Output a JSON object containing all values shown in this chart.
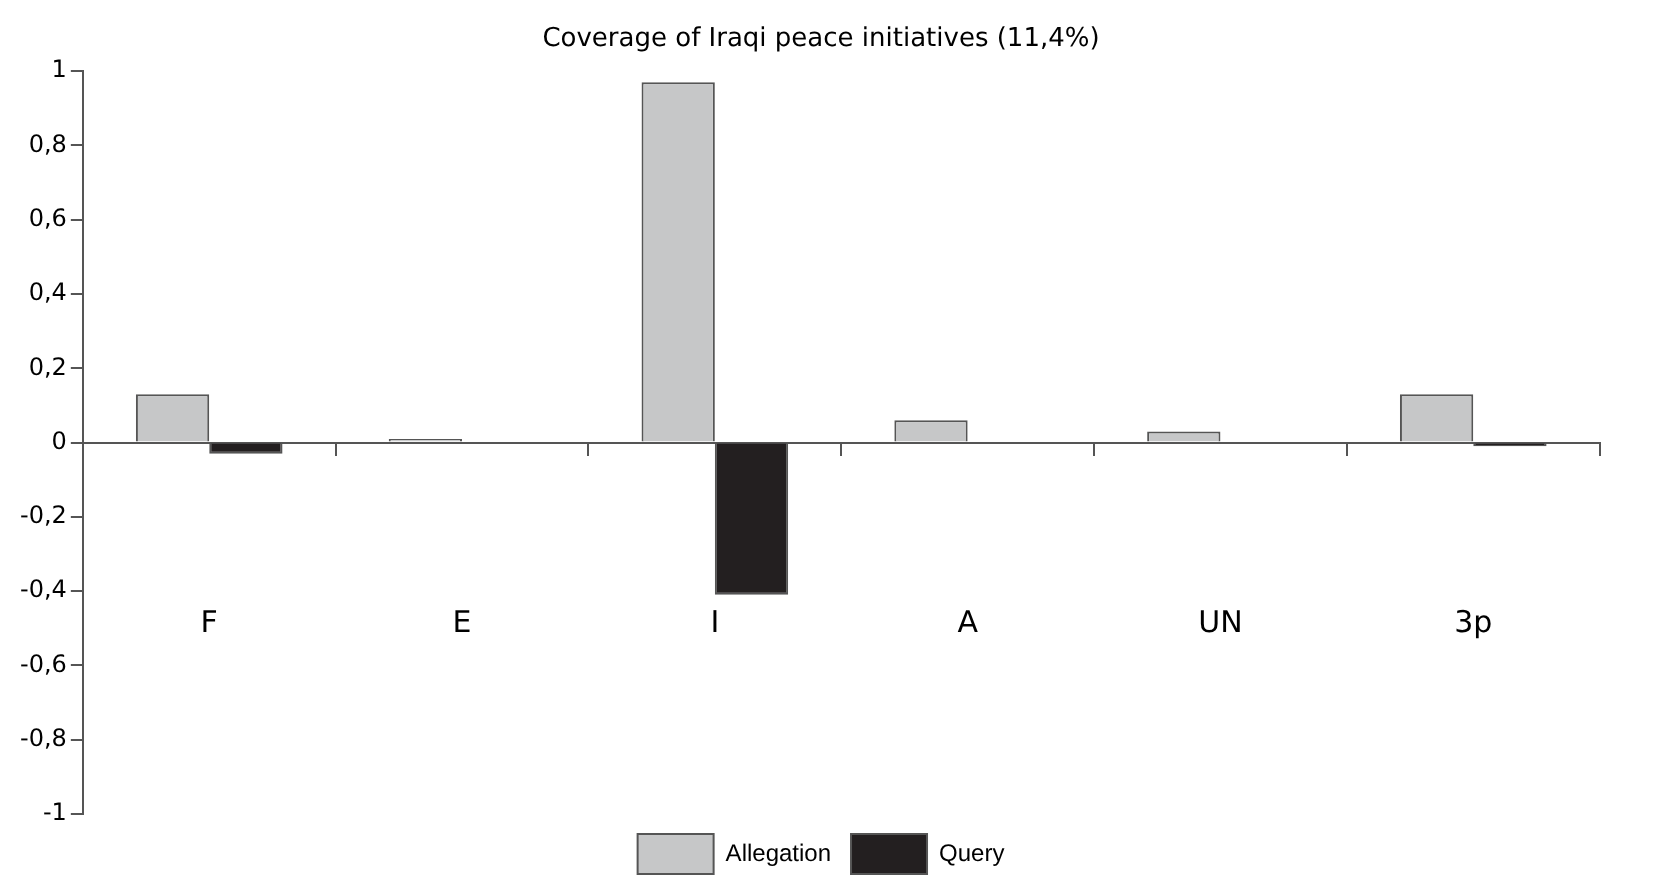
{
  "chart_data": {
    "type": "bar",
    "title": "Coverage of Iraqi peace initiatives (11,4%)",
    "categories": [
      "F",
      "E",
      "I",
      "A",
      "UN",
      "3p"
    ],
    "series": [
      {
        "name": "Allegation",
        "color": "#c6c7c8",
        "values": [
          0.13,
          0.01,
          0.97,
          0.06,
          0.03,
          0.13
        ]
      },
      {
        "name": "Query",
        "color": "#231f20",
        "values": [
          -0.03,
          0,
          -0.41,
          0,
          0,
          -0.01
        ]
      }
    ],
    "ylim": [
      -1,
      1
    ],
    "yticks": [
      {
        "value": -1,
        "label": "-1"
      },
      {
        "value": -0.8,
        "label": "-0,8"
      },
      {
        "value": -0.6,
        "label": "-0,6"
      },
      {
        "value": -0.4,
        "label": "-0,4"
      },
      {
        "value": -0.2,
        "label": "-0,2"
      },
      {
        "value": 0,
        "label": "0"
      },
      {
        "value": 0.2,
        "label": "0,2"
      },
      {
        "value": 0.4,
        "label": "0,4"
      },
      {
        "value": 0.6,
        "label": "0,6"
      },
      {
        "value": 0.8,
        "label": "0,8"
      },
      {
        "value": 1,
        "label": "1"
      }
    ],
    "legend": "bottom"
  }
}
